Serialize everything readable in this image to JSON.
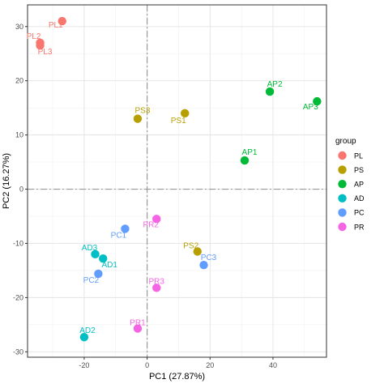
{
  "chart_data": {
    "type": "scatter",
    "xlabel": "PC1 (27.87%)",
    "ylabel": "PC2 (16.27%)",
    "xlim": [
      -38,
      57
    ],
    "ylim": [
      -31,
      34
    ],
    "x_ticks": [
      -20,
      0,
      20,
      40
    ],
    "y_ticks": [
      -30,
      -20,
      -10,
      0,
      10,
      20,
      30
    ],
    "grid": true,
    "reference_lines": {
      "x": 0,
      "y": 0
    },
    "legend_title": "group",
    "legend_position": "right",
    "series": [
      {
        "name": "PL",
        "color": "#F8766D",
        "points": [
          {
            "label": "PL1",
            "x": -27,
            "y": 31
          },
          {
            "label": "PL2",
            "x": -34,
            "y": 27
          },
          {
            "label": "PL3",
            "x": -34,
            "y": 26.5
          }
        ]
      },
      {
        "name": "PS",
        "color": "#B79F00",
        "points": [
          {
            "label": "PS1",
            "x": 12,
            "y": 14
          },
          {
            "label": "PS2",
            "x": 16,
            "y": -11.5
          },
          {
            "label": "PS3",
            "x": -3,
            "y": 13
          }
        ]
      },
      {
        "name": "AP",
        "color": "#00BA38",
        "points": [
          {
            "label": "AP1",
            "x": 31,
            "y": 5.3
          },
          {
            "label": "AP2",
            "x": 39,
            "y": 18
          },
          {
            "label": "AP3",
            "x": 54,
            "y": 16.2
          }
        ]
      },
      {
        "name": "AD",
        "color": "#00BFC4",
        "points": [
          {
            "label": "AD1",
            "x": -14,
            "y": -12.8
          },
          {
            "label": "AD2",
            "x": -20,
            "y": -27.3
          },
          {
            "label": "AD3",
            "x": -16.5,
            "y": -12
          }
        ]
      },
      {
        "name": "PC",
        "color": "#619CFF",
        "points": [
          {
            "label": "PC1",
            "x": -7,
            "y": -7.3
          },
          {
            "label": "PC2",
            "x": -15.5,
            "y": -15.6
          },
          {
            "label": "PC3",
            "x": 18,
            "y": -14
          }
        ]
      },
      {
        "name": "PR",
        "color": "#F564E3",
        "points": [
          {
            "label": "PR1",
            "x": -3,
            "y": -25.7
          },
          {
            "label": "PR2",
            "x": 3,
            "y": -5.5
          },
          {
            "label": "PR3",
            "x": 3,
            "y": -18.2
          }
        ]
      }
    ]
  }
}
